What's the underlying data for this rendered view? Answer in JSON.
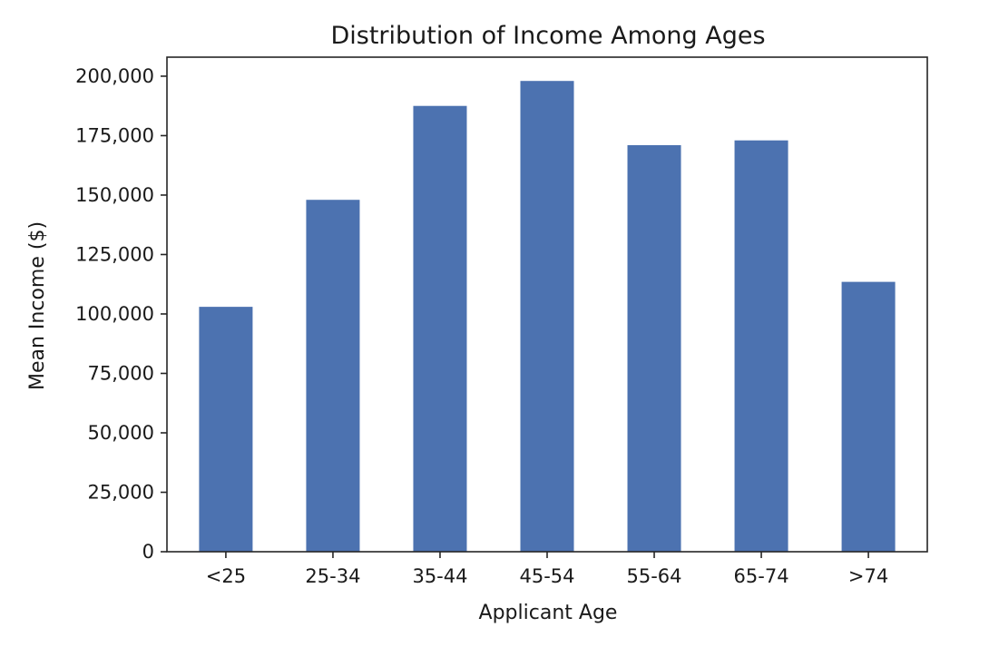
{
  "chart_data": {
    "type": "bar",
    "title": "Distribution of Income Among Ages",
    "xlabel": "Applicant Age",
    "ylabel": "Mean Income ($)",
    "categories": [
      "<25",
      "25-34",
      "35-44",
      "45-54",
      "55-64",
      "65-74",
      ">74"
    ],
    "values": [
      103000,
      148000,
      187500,
      198000,
      171000,
      173000,
      113500
    ],
    "ylim": [
      0,
      208000
    ],
    "yticks": [
      0,
      25000,
      50000,
      75000,
      100000,
      125000,
      150000,
      175000,
      200000
    ],
    "ytick_labels": [
      "0",
      "25,000",
      "50,000",
      "75,000",
      "100,000",
      "125,000",
      "150,000",
      "175,000",
      "200,000"
    ],
    "grid": false,
    "bar_color": "#4c72b0"
  }
}
